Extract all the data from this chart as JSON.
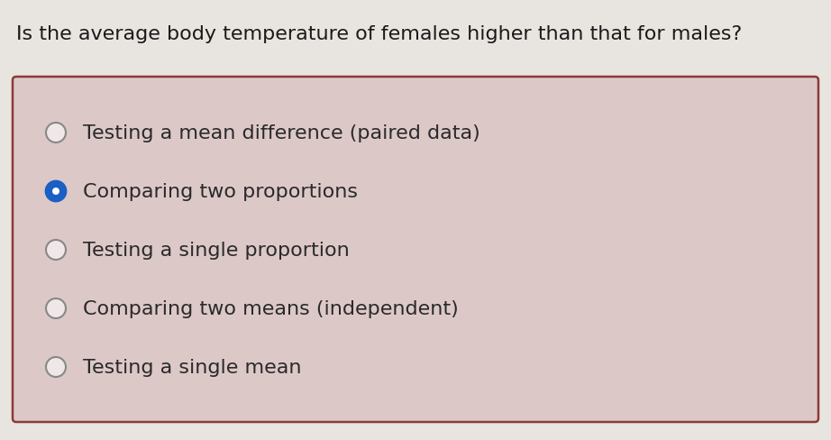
{
  "question": "Is the average body temperature of females higher than that for males?",
  "options": [
    "Testing a mean difference (paired data)",
    "Comparing two proportions",
    "Testing a single proportion",
    "Comparing two means (independent)",
    "Testing a single mean"
  ],
  "selected_index": 1,
  "bg_color": "#e8e4df",
  "question_color": "#1a1a1a",
  "option_color": "#2a2a2a",
  "box_bg_color": "#ddc8c8",
  "box_border_color": "#8b3a3a",
  "radio_unselected_edge": "#888888",
  "radio_unselected_fill": "#f0e8e8",
  "radio_selected_fill": "#1a5fc4",
  "radio_selected_border": "#1a5fc4",
  "radio_selected_inner": "#ffffff",
  "question_fontsize": 16,
  "option_fontsize": 16
}
